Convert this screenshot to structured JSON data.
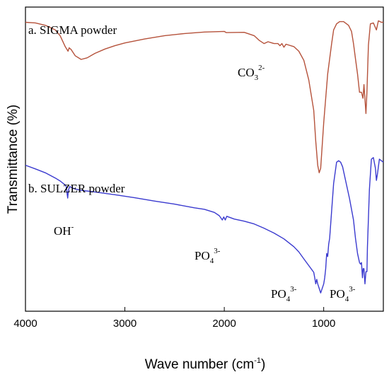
{
  "chart_data": {
    "type": "line",
    "title": "",
    "xlabel_main": "Wave number (cm",
    "xlabel_sup": "-1",
    "xlabel_close": ")",
    "ylabel": "Transmittance (%)",
    "xlim": [
      4000,
      400
    ],
    "x_reversed": true,
    "ylim": [
      0,
      1
    ],
    "y_ticks_shown": false,
    "grid": false,
    "x_ticks": [
      {
        "value": 4000,
        "label": "4000"
      },
      {
        "value": 3000,
        "label": "3000"
      },
      {
        "value": 2000,
        "label": "2000"
      },
      {
        "value": 1000,
        "label": "1000"
      }
    ],
    "series": [
      {
        "name": "a. SIGMA powder",
        "color": "#b5523b",
        "x": [
          4000,
          3900,
          3800,
          3700,
          3650,
          3600,
          3572,
          3560,
          3540,
          3500,
          3440,
          3380,
          3300,
          3200,
          3100,
          3000,
          2800,
          2600,
          2400,
          2200,
          2000,
          1980,
          1800,
          1700,
          1650,
          1600,
          1560,
          1500,
          1460,
          1440,
          1420,
          1400,
          1380,
          1300,
          1250,
          1200,
          1150,
          1100,
          1080,
          1060,
          1045,
          1030,
          1000,
          980,
          960,
          940,
          920,
          900,
          870,
          840,
          800,
          750,
          720,
          700,
          680,
          660,
          640,
          620,
          605,
          595,
          575,
          565,
          550,
          530,
          500,
          470,
          450,
          420,
          400
        ],
        "y": [
          0.95,
          0.948,
          0.94,
          0.925,
          0.905,
          0.87,
          0.855,
          0.866,
          0.86,
          0.84,
          0.828,
          0.833,
          0.848,
          0.862,
          0.873,
          0.882,
          0.895,
          0.906,
          0.913,
          0.918,
          0.92,
          0.916,
          0.917,
          0.906,
          0.891,
          0.88,
          0.886,
          0.88,
          0.88,
          0.873,
          0.88,
          0.868,
          0.878,
          0.87,
          0.855,
          0.825,
          0.76,
          0.66,
          0.56,
          0.48,
          0.455,
          0.47,
          0.62,
          0.7,
          0.78,
          0.83,
          0.88,
          0.925,
          0.945,
          0.952,
          0.952,
          0.94,
          0.92,
          0.88,
          0.83,
          0.78,
          0.72,
          0.72,
          0.7,
          0.745,
          0.65,
          0.72,
          0.875,
          0.945,
          0.948,
          0.925,
          0.955,
          0.95,
          0.95
        ]
      },
      {
        "name": "b. SULZER powder",
        "color": "#3a3acf",
        "x": [
          4000,
          3900,
          3800,
          3700,
          3650,
          3600,
          3590,
          3575,
          3568,
          3555,
          3520,
          3450,
          3300,
          3100,
          2900,
          2700,
          2500,
          2300,
          2200,
          2100,
          2050,
          2020,
          2005,
          1990,
          1975,
          1900,
          1800,
          1700,
          1600,
          1500,
          1400,
          1300,
          1250,
          1200,
          1150,
          1100,
          1090,
          1080,
          1070,
          1060,
          1040,
          1030,
          1000,
          990,
          980,
          970,
          960,
          950,
          940,
          920,
          900,
          870,
          850,
          830,
          810,
          780,
          740,
          700,
          680,
          660,
          640,
          630,
          620,
          610,
          603,
          595,
          585,
          575,
          565,
          560,
          540,
          520,
          500,
          480,
          470,
          460,
          440,
          420,
          400
        ],
        "y": [
          0.48,
          0.468,
          0.455,
          0.438,
          0.428,
          0.415,
          0.41,
          0.372,
          0.398,
          0.41,
          0.404,
          0.398,
          0.392,
          0.383,
          0.373,
          0.362,
          0.352,
          0.34,
          0.335,
          0.325,
          0.314,
          0.3,
          0.31,
          0.3,
          0.312,
          0.303,
          0.296,
          0.287,
          0.273,
          0.257,
          0.238,
          0.212,
          0.195,
          0.172,
          0.15,
          0.128,
          0.11,
          0.09,
          0.105,
          0.09,
          0.07,
          0.06,
          0.09,
          0.11,
          0.14,
          0.19,
          0.18,
          0.22,
          0.24,
          0.33,
          0.42,
          0.49,
          0.495,
          0.49,
          0.475,
          0.43,
          0.37,
          0.3,
          0.24,
          0.19,
          0.16,
          0.155,
          0.16,
          0.11,
          0.14,
          0.14,
          0.09,
          0.13,
          0.13,
          0.21,
          0.4,
          0.5,
          0.505,
          0.47,
          0.43,
          0.45,
          0.5,
          0.495,
          0.49
        ]
      }
    ],
    "annotations": {
      "sigma_label": "a. SIGMA powder",
      "sulzer_label": "b. SULZER powder",
      "co3": {
        "base": "CO",
        "sub": "3",
        "sup": "2-"
      },
      "oh": {
        "base": "OH",
        "sup": "-"
      },
      "po4_2000": {
        "base": "PO",
        "sub": "4",
        "sup": "3-"
      },
      "po4_1050": {
        "base": "PO",
        "sub": "4",
        "sup": "3-"
      },
      "po4_600": {
        "base": "PO",
        "sub": "4",
        "sup": "3-"
      }
    }
  }
}
